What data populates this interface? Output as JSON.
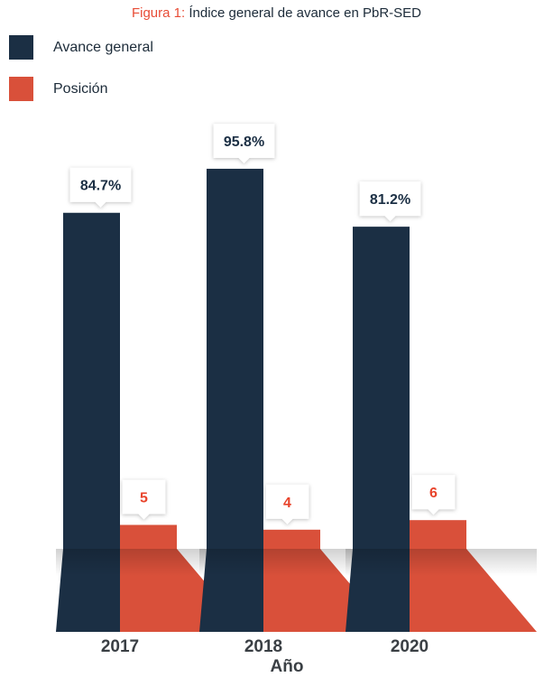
{
  "title": {
    "prefix": "Figura 1:",
    "text": "Índice general de avance en PbR-SED"
  },
  "colors": {
    "avance": "#1b2f44",
    "posicion": "#d9503a",
    "title_accent": "#e84c36"
  },
  "chart_data": {
    "type": "bar",
    "categories": [
      "2017",
      "2018",
      "2020"
    ],
    "xlabel": "Año",
    "ylabel": "",
    "legend_position": "top-left",
    "grid": false,
    "series": [
      {
        "name": "Avance general",
        "values": [
          84.7,
          95.8,
          81.2
        ],
        "labels": [
          "84.7%",
          "95.8%",
          "81.2%"
        ]
      },
      {
        "name": "Posición",
        "values": [
          5,
          4,
          6
        ],
        "labels": [
          "5",
          "4",
          "6"
        ]
      }
    ]
  }
}
